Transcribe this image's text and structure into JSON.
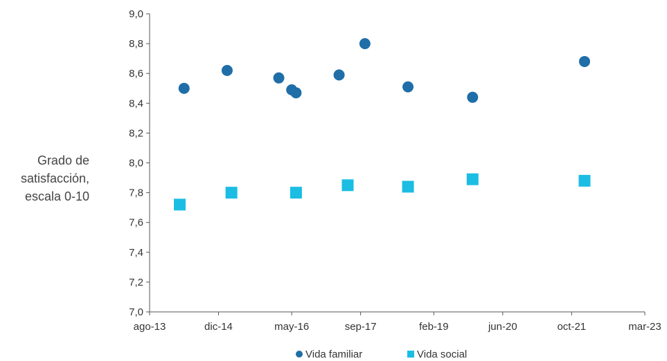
{
  "chart_data": {
    "type": "scatter",
    "ylabel_lines": [
      "Grado de",
      "satisfacción,",
      "escala 0-10"
    ],
    "xlabel": "",
    "ylim": [
      7.0,
      9.0
    ],
    "y_ticks": [
      "7,0",
      "7,2",
      "7,4",
      "7,6",
      "7,8",
      "8,0",
      "8,2",
      "8,4",
      "8,6",
      "8,8",
      "9,0"
    ],
    "x_ticks": [
      "ago-13",
      "dic-14",
      "may-16",
      "sep-17",
      "feb-19",
      "jun-20",
      "oct-21",
      "mar-23"
    ],
    "x_range": [
      "ago-13",
      "mar-23"
    ],
    "series": [
      {
        "name": "Vida familiar",
        "marker": "circle",
        "color": "#1f6ea8",
        "points": [
          {
            "x": "abr-14",
            "y": 8.5
          },
          {
            "x": "feb-15",
            "y": 8.62
          },
          {
            "x": "feb-16",
            "y": 8.57
          },
          {
            "x": "may-16",
            "y": 8.49
          },
          {
            "x": "jun-16",
            "y": 8.47
          },
          {
            "x": "abr-17",
            "y": 8.59
          },
          {
            "x": "oct-17",
            "y": 8.8
          },
          {
            "x": "ago-18",
            "y": 8.51
          },
          {
            "x": "nov-19",
            "y": 8.44
          },
          {
            "x": "ene-22",
            "y": 8.68
          }
        ]
      },
      {
        "name": "Vida social",
        "marker": "square",
        "color": "#1bbde3",
        "points": [
          {
            "x": "mar-14",
            "y": 7.72
          },
          {
            "x": "mar-15",
            "y": 7.8
          },
          {
            "x": "jun-16",
            "y": 7.8
          },
          {
            "x": "jun-17",
            "y": 7.85
          },
          {
            "x": "ago-18",
            "y": 7.84
          },
          {
            "x": "nov-19",
            "y": 7.89
          },
          {
            "x": "ene-22",
            "y": 7.88
          }
        ]
      }
    ],
    "legend_position": "bottom",
    "grid": false
  }
}
